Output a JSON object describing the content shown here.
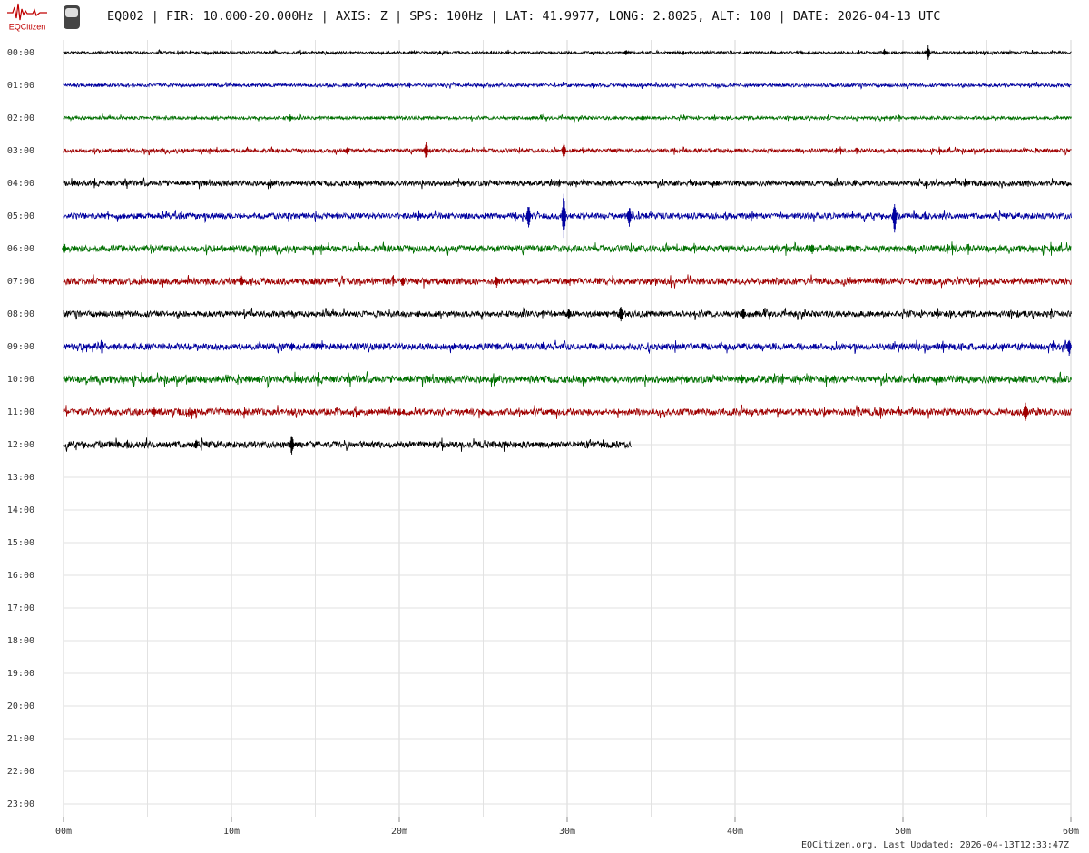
{
  "chart_data": {
    "type": "helicorder",
    "brand": "EQCitizen",
    "title": "EQ002 | FIR: 10.000-20.000Hz | AXIS: Z | SPS: 100Hz | LAT: 41.9977, LONG: 2.8025, ALT: 100 | DATE: 2026-04-13 UTC",
    "footer": "EQCitizen.org. Last Updated: 2026-04-13T12:33:47Z",
    "categories": [
      "00:00",
      "01:00",
      "02:00",
      "03:00",
      "04:00",
      "05:00",
      "06:00",
      "07:00",
      "08:00",
      "09:00",
      "10:00",
      "11:00",
      "12:00",
      "13:00",
      "14:00",
      "15:00",
      "16:00",
      "17:00",
      "18:00",
      "19:00",
      "20:00",
      "21:00",
      "22:00",
      "23:00"
    ],
    "xlim": [
      0,
      60
    ],
    "xticks": [
      {
        "value": 0,
        "label": "00m"
      },
      {
        "value": 10,
        "label": "10m"
      },
      {
        "value": 20,
        "label": "20m"
      },
      {
        "value": 30,
        "label": "30m"
      },
      {
        "value": 40,
        "label": "40m"
      },
      {
        "value": 50,
        "label": "50m"
      },
      {
        "value": 60,
        "label": "60m"
      }
    ],
    "xminor": [
      5,
      15,
      25,
      35,
      45,
      55
    ],
    "grid": true,
    "series": [
      {
        "color": "#000000",
        "end": 60,
        "noise": 0.04,
        "events": [
          {
            "x": 51.5,
            "amp": 0.25
          },
          {
            "x": 48.9,
            "amp": 0.12
          },
          {
            "x": 33.5,
            "amp": 0.1
          }
        ]
      },
      {
        "color": "#0000a0",
        "end": 60,
        "noise": 0.05,
        "events": []
      },
      {
        "color": "#007000",
        "end": 60,
        "noise": 0.05,
        "events": [
          {
            "x": 13.5,
            "amp": 0.12
          },
          {
            "x": 34.5,
            "amp": 0.1
          }
        ]
      },
      {
        "color": "#a00000",
        "end": 60,
        "noise": 0.06,
        "events": [
          {
            "x": 21.6,
            "amp": 0.3
          },
          {
            "x": 29.8,
            "amp": 0.25
          },
          {
            "x": 16.9,
            "amp": 0.15
          }
        ]
      },
      {
        "color": "#000000",
        "end": 60,
        "noise": 0.08,
        "events": []
      },
      {
        "color": "#0000a0",
        "end": 60,
        "noise": 0.09,
        "events": [
          {
            "x": 29.8,
            "amp": 0.75
          },
          {
            "x": 27.7,
            "amp": 0.4
          },
          {
            "x": 33.7,
            "amp": 0.35
          },
          {
            "x": 49.5,
            "amp": 0.55
          }
        ]
      },
      {
        "color": "#007000",
        "end": 60,
        "noise": 0.1,
        "events": [
          {
            "x": 44.6,
            "amp": 0.2
          },
          {
            "x": 0.05,
            "amp": 0.2
          }
        ]
      },
      {
        "color": "#a00000",
        "end": 60,
        "noise": 0.1,
        "events": [
          {
            "x": 25.8,
            "amp": 0.2
          },
          {
            "x": 10.6,
            "amp": 0.18
          },
          {
            "x": 20.2,
            "amp": 0.18
          }
        ]
      },
      {
        "color": "#000000",
        "end": 60,
        "noise": 0.09,
        "events": [
          {
            "x": 33.2,
            "amp": 0.3
          },
          {
            "x": 40.5,
            "amp": 0.2
          },
          {
            "x": 30.1,
            "amp": 0.18
          }
        ]
      },
      {
        "color": "#0000a0",
        "end": 60,
        "noise": 0.1,
        "events": [
          {
            "x": 13.6,
            "amp": 0.15
          },
          {
            "x": 59.9,
            "amp": 0.3
          }
        ]
      },
      {
        "color": "#007000",
        "end": 60,
        "noise": 0.11,
        "events": [
          {
            "x": 40.4,
            "amp": 0.15
          }
        ]
      },
      {
        "color": "#a00000",
        "end": 60,
        "noise": 0.1,
        "events": [
          {
            "x": 57.3,
            "amp": 0.35
          },
          {
            "x": 5.4,
            "amp": 0.15
          }
        ]
      },
      {
        "color": "#000000",
        "end": 33.8,
        "noise": 0.1,
        "events": [
          {
            "x": 13.6,
            "amp": 0.35
          },
          {
            "x": 7.9,
            "amp": 0.15
          }
        ]
      }
    ]
  }
}
